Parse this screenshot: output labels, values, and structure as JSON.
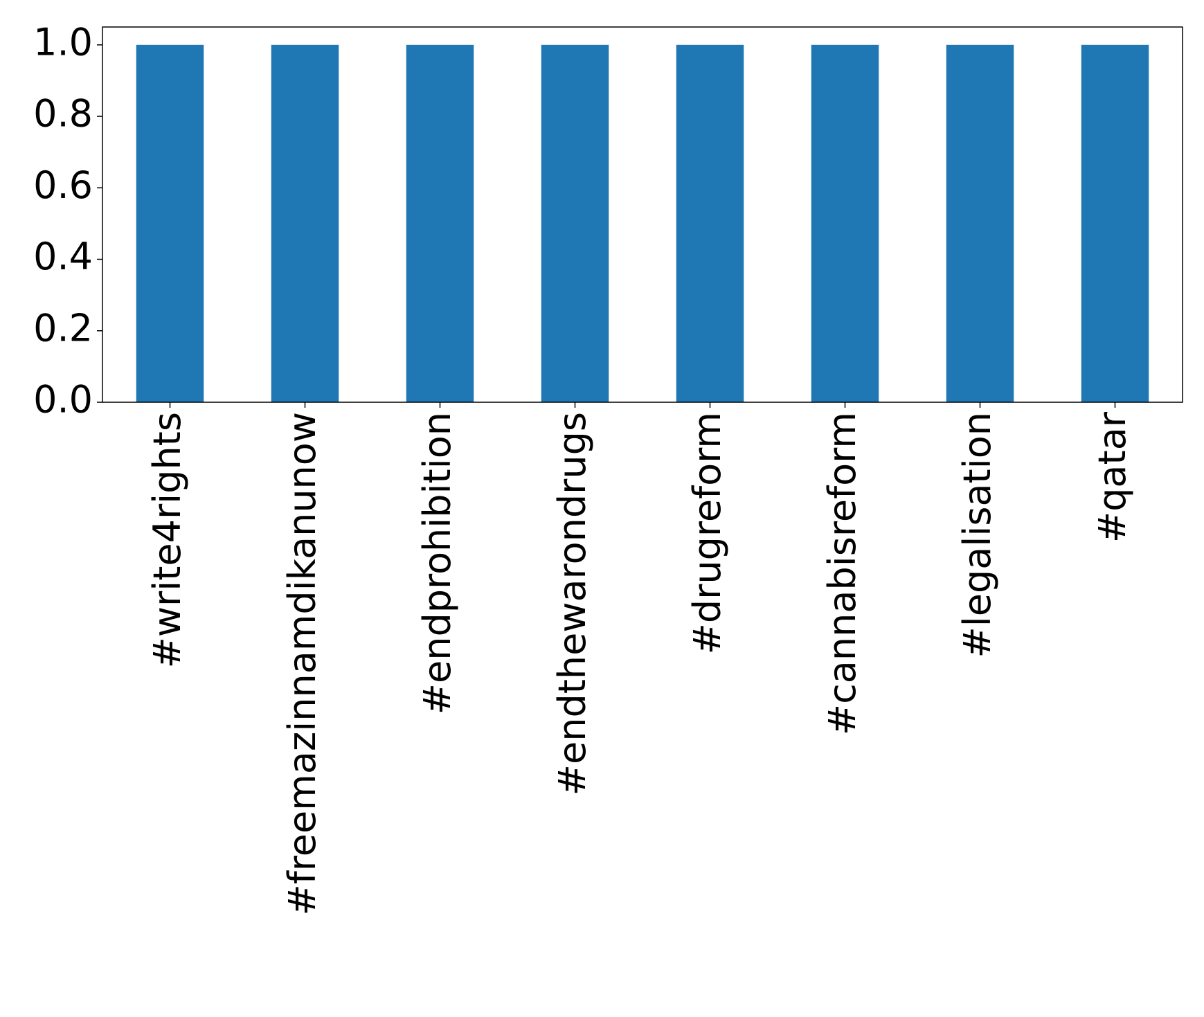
{
  "chart_data": {
    "type": "bar",
    "categories": [
      "#write4rights",
      "#freemazinnamdikanunow",
      "#endprohibition",
      "#endthewarondrugs",
      "#drugreform",
      "#cannabisreform",
      "#legalisation",
      "#qatar"
    ],
    "values": [
      1.0,
      1.0,
      1.0,
      1.0,
      1.0,
      1.0,
      1.0,
      1.0
    ],
    "color": "#1f77b4",
    "ylim": [
      0,
      1.05
    ],
    "yticks": [
      {
        "value": 0,
        "label": "0.0"
      },
      {
        "value": 0.2,
        "label": "0.2"
      },
      {
        "value": 0.4,
        "label": "0.4"
      },
      {
        "value": 0.6,
        "label": "0.6"
      },
      {
        "value": 0.8,
        "label": "0.8"
      },
      {
        "value": 1,
        "label": "1.0"
      }
    ],
    "grid": false
  }
}
